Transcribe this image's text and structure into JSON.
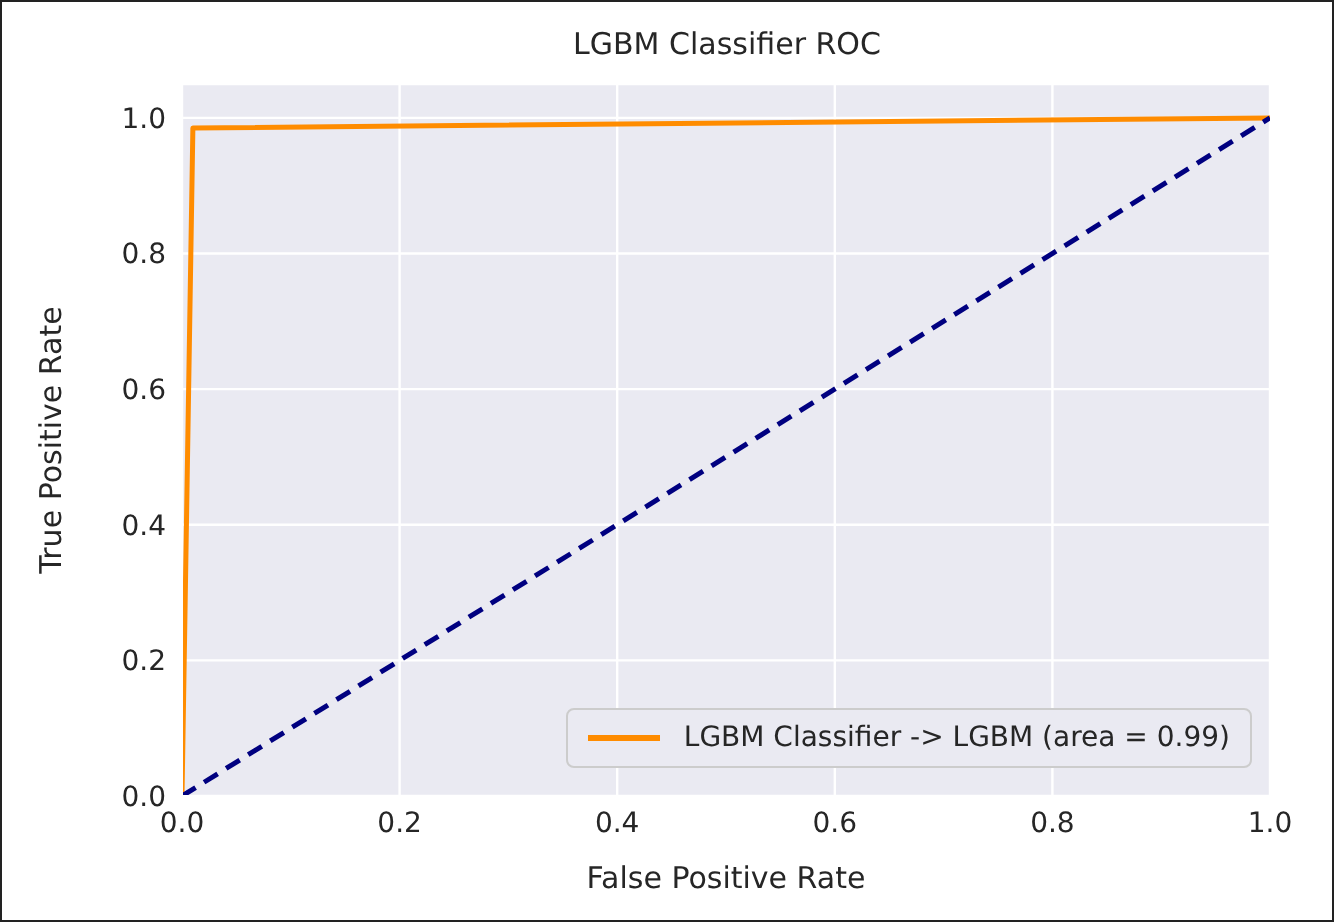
{
  "chart_data": {
    "type": "line",
    "title": "LGBM Classifier ROC",
    "xlabel": "False Positive Rate",
    "ylabel": "True Positive Rate",
    "series": [
      {
        "name": "LGBM Classifier -> LGBM (area = 0.99)",
        "color": "#ff8c00",
        "x": [
          0,
          0.01,
          1
        ],
        "values": [
          0,
          0.985,
          1
        ],
        "line_style": "solid"
      },
      {
        "color": "#000080",
        "x": [
          0,
          1
        ],
        "values": [
          0,
          1
        ],
        "line_style": "dashed"
      }
    ],
    "xlim": [
      0,
      1
    ],
    "ylim": [
      0,
      1.05
    ],
    "xticks": [
      {
        "value": 0,
        "label": "0.0"
      },
      0.2,
      0.4,
      0.6,
      0.8,
      {
        "value": 1,
        "label": "1.0"
      }
    ],
    "yticks": [
      {
        "value": 0,
        "label": "0.0"
      },
      0.2,
      0.4,
      0.6,
      0.8,
      {
        "value": 1,
        "label": "1.0"
      }
    ],
    "grid": true,
    "legend": "bottom right",
    "marker": "none"
  }
}
